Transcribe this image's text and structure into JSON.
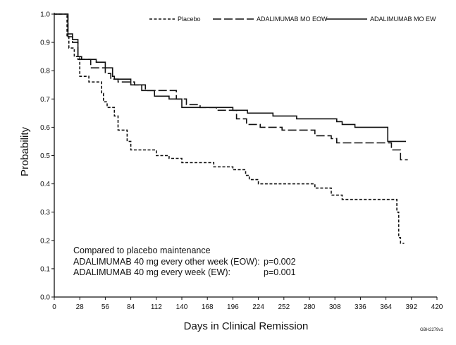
{
  "chart_data": {
    "type": "line",
    "xlabel": "Days in Clinical Remission",
    "ylabel": "Probability",
    "xlim": [
      0,
      420
    ],
    "ylim": [
      0,
      1.0
    ],
    "xticks": [
      "0",
      "28",
      "56",
      "84",
      "112",
      "140",
      "168",
      "196",
      "224",
      "252",
      "280",
      "308",
      "336",
      "364",
      "392",
      "420"
    ],
    "yticks": [
      "0.0",
      "0.1",
      "0.2",
      "0.3",
      "0.4",
      "0.5",
      "0.6",
      "0.7",
      "0.8",
      "0.9",
      "1.0"
    ],
    "legend_position": "top-right",
    "grid": false,
    "series": [
      {
        "name": "Placebo",
        "style": "dashed-short",
        "color": "#111111",
        "points": [
          [
            0,
            1.0
          ],
          [
            14,
            1.0
          ],
          [
            14,
            0.92
          ],
          [
            16,
            0.92
          ],
          [
            16,
            0.88
          ],
          [
            22,
            0.88
          ],
          [
            22,
            0.85
          ],
          [
            28,
            0.85
          ],
          [
            28,
            0.78
          ],
          [
            38,
            0.78
          ],
          [
            38,
            0.76
          ],
          [
            52,
            0.76
          ],
          [
            52,
            0.72
          ],
          [
            54,
            0.72
          ],
          [
            54,
            0.69
          ],
          [
            58,
            0.69
          ],
          [
            58,
            0.67
          ],
          [
            66,
            0.67
          ],
          [
            66,
            0.64
          ],
          [
            70,
            0.64
          ],
          [
            70,
            0.59
          ],
          [
            80,
            0.59
          ],
          [
            80,
            0.55
          ],
          [
            84,
            0.55
          ],
          [
            84,
            0.52
          ],
          [
            112,
            0.52
          ],
          [
            112,
            0.5
          ],
          [
            126,
            0.5
          ],
          [
            126,
            0.49
          ],
          [
            140,
            0.49
          ],
          [
            140,
            0.475
          ],
          [
            175,
            0.475
          ],
          [
            175,
            0.46
          ],
          [
            196,
            0.46
          ],
          [
            196,
            0.45
          ],
          [
            210,
            0.45
          ],
          [
            210,
            0.43
          ],
          [
            214,
            0.43
          ],
          [
            214,
            0.415
          ],
          [
            224,
            0.415
          ],
          [
            224,
            0.4
          ],
          [
            286,
            0.4
          ],
          [
            286,
            0.385
          ],
          [
            304,
            0.385
          ],
          [
            304,
            0.36
          ],
          [
            316,
            0.36
          ],
          [
            316,
            0.345
          ],
          [
            376,
            0.345
          ],
          [
            376,
            0.3
          ],
          [
            378,
            0.3
          ],
          [
            378,
            0.21
          ],
          [
            380,
            0.21
          ],
          [
            380,
            0.19
          ],
          [
            384,
            0.19
          ]
        ]
      },
      {
        "name": "ADALIMUMAB MO EOW",
        "style": "dashed-long",
        "color": "#111111",
        "points": [
          [
            0,
            1.0
          ],
          [
            15,
            1.0
          ],
          [
            15,
            0.92
          ],
          [
            20,
            0.92
          ],
          [
            20,
            0.9
          ],
          [
            26,
            0.9
          ],
          [
            26,
            0.84
          ],
          [
            40,
            0.84
          ],
          [
            40,
            0.81
          ],
          [
            56,
            0.81
          ],
          [
            56,
            0.79
          ],
          [
            62,
            0.79
          ],
          [
            62,
            0.77
          ],
          [
            70,
            0.77
          ],
          [
            70,
            0.76
          ],
          [
            88,
            0.76
          ],
          [
            88,
            0.75
          ],
          [
            100,
            0.75
          ],
          [
            100,
            0.73
          ],
          [
            134,
            0.73
          ],
          [
            134,
            0.7
          ],
          [
            145,
            0.7
          ],
          [
            145,
            0.68
          ],
          [
            160,
            0.68
          ],
          [
            160,
            0.67
          ],
          [
            178,
            0.67
          ],
          [
            178,
            0.66
          ],
          [
            200,
            0.66
          ],
          [
            200,
            0.63
          ],
          [
            211,
            0.63
          ],
          [
            211,
            0.61
          ],
          [
            226,
            0.61
          ],
          [
            226,
            0.6
          ],
          [
            250,
            0.6
          ],
          [
            250,
            0.59
          ],
          [
            286,
            0.59
          ],
          [
            286,
            0.57
          ],
          [
            304,
            0.57
          ],
          [
            304,
            0.56
          ],
          [
            310,
            0.56
          ],
          [
            310,
            0.545
          ],
          [
            370,
            0.545
          ],
          [
            370,
            0.52
          ],
          [
            380,
            0.52
          ],
          [
            380,
            0.485
          ],
          [
            388,
            0.485
          ]
        ]
      },
      {
        "name": "ADALIMUMAB MO EW",
        "style": "solid",
        "color": "#111111",
        "points": [
          [
            0,
            1.0
          ],
          [
            15,
            1.0
          ],
          [
            15,
            0.93
          ],
          [
            20,
            0.93
          ],
          [
            20,
            0.91
          ],
          [
            26,
            0.91
          ],
          [
            26,
            0.85
          ],
          [
            30,
            0.85
          ],
          [
            30,
            0.84
          ],
          [
            46,
            0.84
          ],
          [
            46,
            0.83
          ],
          [
            56,
            0.83
          ],
          [
            56,
            0.81
          ],
          [
            64,
            0.81
          ],
          [
            64,
            0.78
          ],
          [
            66,
            0.78
          ],
          [
            66,
            0.77
          ],
          [
            84,
            0.77
          ],
          [
            84,
            0.75
          ],
          [
            96,
            0.75
          ],
          [
            96,
            0.73
          ],
          [
            110,
            0.73
          ],
          [
            110,
            0.71
          ],
          [
            126,
            0.71
          ],
          [
            126,
            0.7
          ],
          [
            140,
            0.7
          ],
          [
            140,
            0.67
          ],
          [
            196,
            0.67
          ],
          [
            196,
            0.66
          ],
          [
            212,
            0.66
          ],
          [
            212,
            0.65
          ],
          [
            240,
            0.65
          ],
          [
            240,
            0.64
          ],
          [
            266,
            0.64
          ],
          [
            266,
            0.63
          ],
          [
            310,
            0.63
          ],
          [
            310,
            0.62
          ],
          [
            316,
            0.62
          ],
          [
            316,
            0.61
          ],
          [
            330,
            0.61
          ],
          [
            330,
            0.6
          ],
          [
            366,
            0.6
          ],
          [
            366,
            0.55
          ],
          [
            386,
            0.55
          ]
        ]
      }
    ],
    "annotations": {
      "title": "Compared to placebo maintenance",
      "rows": [
        {
          "label": "ADALIMUMAB 40 mg every other week (EOW):",
          "p": "p=0.002"
        },
        {
          "label": "ADALIMUMAB 40 mg every week (EW):",
          "p": "p=0.001"
        }
      ]
    },
    "figure_code": "GBH2279v1"
  }
}
